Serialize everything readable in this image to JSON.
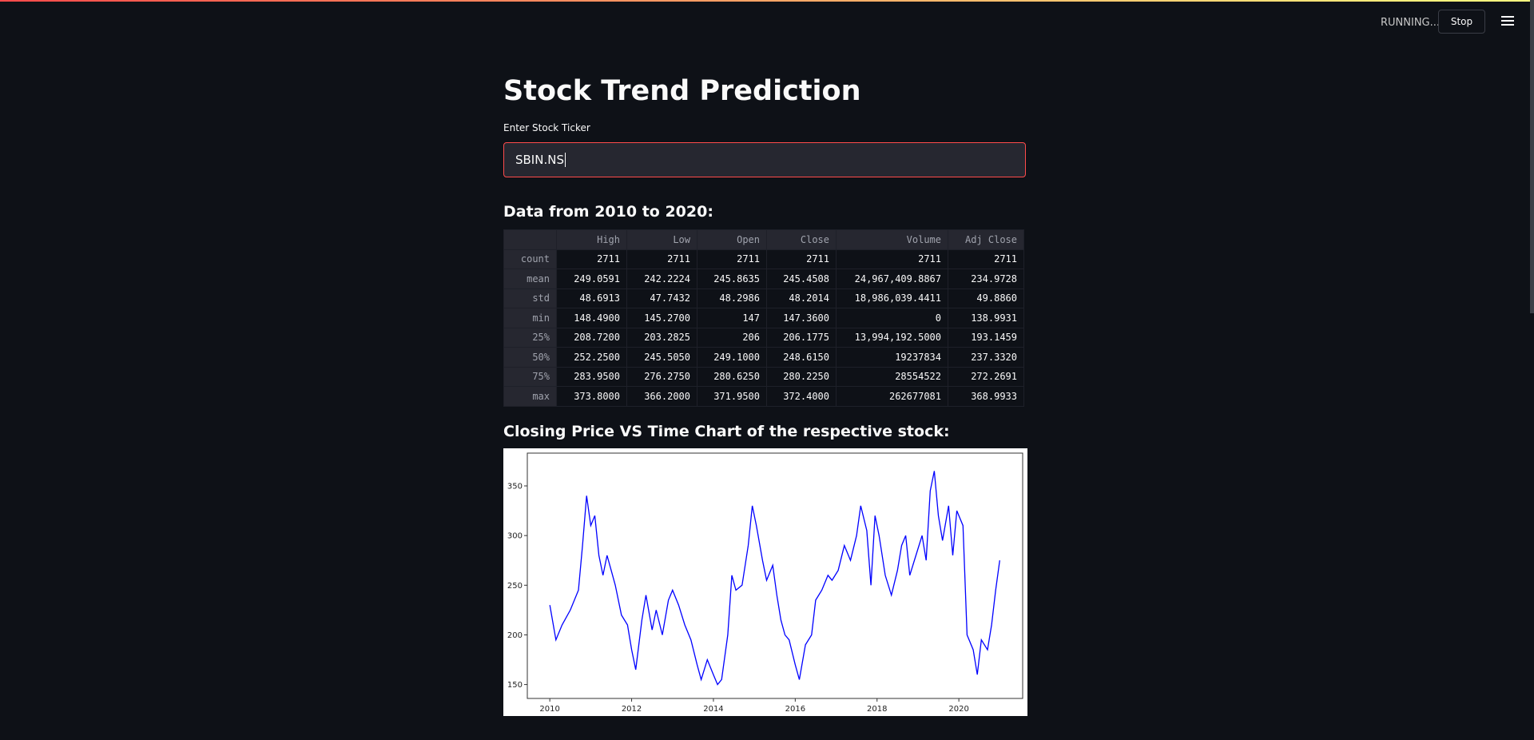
{
  "header": {
    "status": "RUNNING...",
    "stop_button": "Stop"
  },
  "title": "Stock Trend Prediction",
  "input": {
    "label": "Enter Stock Ticker",
    "value": "SBIN.NS"
  },
  "table_heading": "Data from 2010 to 2020:",
  "table": {
    "columns": [
      "High",
      "Low",
      "Open",
      "Close",
      "Volume",
      "Adj Close"
    ],
    "rows": [
      {
        "label": "count",
        "values": [
          "2711",
          "2711",
          "2711",
          "2711",
          "2711",
          "2711"
        ]
      },
      {
        "label": "mean",
        "values": [
          "249.0591",
          "242.2224",
          "245.8635",
          "245.4508",
          "24,967,409.8867",
          "234.9728"
        ]
      },
      {
        "label": "std",
        "values": [
          "48.6913",
          "47.7432",
          "48.2986",
          "48.2014",
          "18,986,039.4411",
          "49.8860"
        ]
      },
      {
        "label": "min",
        "values": [
          "148.4900",
          "145.2700",
          "147",
          "147.3600",
          "0",
          "138.9931"
        ]
      },
      {
        "label": "25%",
        "values": [
          "208.7200",
          "203.2825",
          "206",
          "206.1775",
          "13,994,192.5000",
          "193.1459"
        ]
      },
      {
        "label": "50%",
        "values": [
          "252.2500",
          "245.5050",
          "249.1000",
          "248.6150",
          "19237834",
          "237.3320"
        ]
      },
      {
        "label": "75%",
        "values": [
          "283.9500",
          "276.2750",
          "280.6250",
          "280.2250",
          "28554522",
          "272.2691"
        ]
      },
      {
        "label": "max",
        "values": [
          "373.8000",
          "366.2000",
          "371.9500",
          "372.4000",
          "262677081",
          "368.9933"
        ]
      }
    ]
  },
  "chart_heading": "Closing Price VS Time Chart of the respective stock:",
  "chart_data": {
    "type": "line",
    "x": [
      2010.0,
      2010.15,
      2010.3,
      2010.5,
      2010.7,
      2010.8,
      2010.9,
      2011.0,
      2011.1,
      2011.2,
      2011.3,
      2011.4,
      2011.5,
      2011.6,
      2011.75,
      2011.9,
      2012.0,
      2012.1,
      2012.25,
      2012.35,
      2012.5,
      2012.6,
      2012.75,
      2012.9,
      2013.0,
      2013.15,
      2013.3,
      2013.45,
      2013.6,
      2013.7,
      2013.85,
      2014.0,
      2014.1,
      2014.2,
      2014.35,
      2014.45,
      2014.55,
      2014.7,
      2014.85,
      2014.95,
      2015.05,
      2015.2,
      2015.3,
      2015.45,
      2015.55,
      2015.65,
      2015.75,
      2015.85,
      2016.0,
      2016.1,
      2016.25,
      2016.4,
      2016.5,
      2016.65,
      2016.8,
      2016.9,
      2017.05,
      2017.2,
      2017.35,
      2017.5,
      2017.6,
      2017.75,
      2017.85,
      2017.95,
      2018.05,
      2018.2,
      2018.35,
      2018.5,
      2018.6,
      2018.7,
      2018.8,
      2018.95,
      2019.1,
      2019.2,
      2019.3,
      2019.4,
      2019.5,
      2019.6,
      2019.75,
      2019.85,
      2019.95,
      2020.1,
      2020.2,
      2020.35,
      2020.45,
      2020.55,
      2020.7,
      2020.8,
      2020.9,
      2021.0
    ],
    "series": [
      {
        "color": "#0000ff",
        "values": [
          230,
          195,
          210,
          225,
          245,
          290,
          340,
          310,
          320,
          280,
          260,
          280,
          265,
          250,
          220,
          210,
          185,
          165,
          215,
          240,
          205,
          225,
          200,
          235,
          245,
          230,
          210,
          195,
          170,
          155,
          175,
          160,
          150,
          155,
          200,
          260,
          245,
          250,
          290,
          330,
          310,
          275,
          255,
          270,
          240,
          215,
          200,
          195,
          170,
          155,
          190,
          200,
          235,
          245,
          260,
          255,
          265,
          290,
          275,
          300,
          330,
          305,
          250,
          320,
          300,
          260,
          240,
          265,
          290,
          300,
          260,
          280,
          300,
          275,
          345,
          365,
          320,
          295,
          330,
          280,
          325,
          310,
          200,
          185,
          160,
          195,
          185,
          210,
          245,
          275
        ]
      }
    ],
    "xlim": [
      2009.45,
      2021.56
    ],
    "ylim": [
      136,
      383
    ],
    "xticks": [
      2010,
      2012,
      2014,
      2016,
      2018,
      2020
    ],
    "yticks": [
      150,
      200,
      250,
      300,
      350
    ]
  }
}
